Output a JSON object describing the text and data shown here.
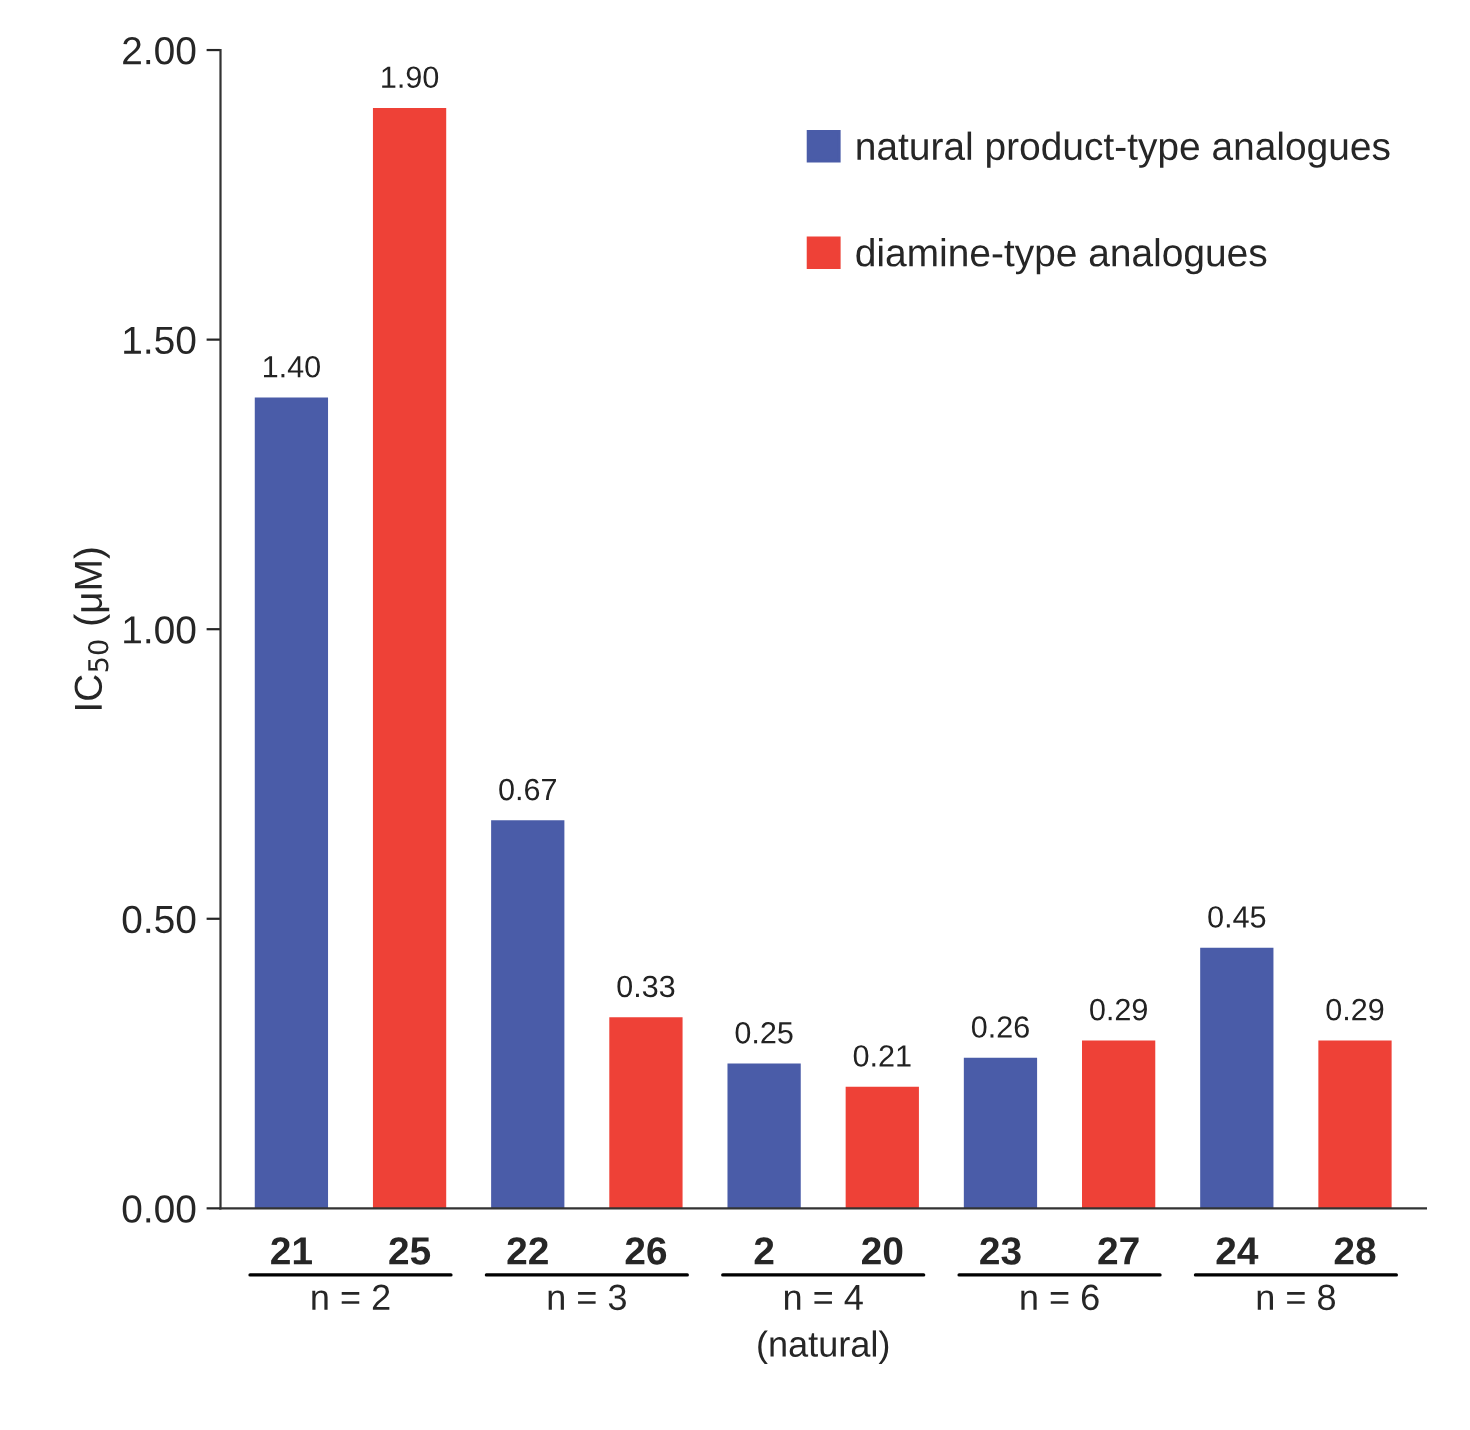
{
  "chart_data": {
    "type": "bar",
    "ylabel": "IC$_{50}$ (μM)",
    "categories": [
      "21",
      "25",
      "22",
      "26",
      "2",
      "20",
      "23",
      "27",
      "24",
      "28"
    ],
    "series": [
      {
        "name": "natural product-type analogues",
        "color": "#4a5ca8",
        "values": [
          1.4,
          null,
          0.67,
          null,
          0.25,
          null,
          0.26,
          null,
          0.45,
          null
        ]
      },
      {
        "name": "diamine-type analogues",
        "color": "#ee4137",
        "values": [
          null,
          1.9,
          null,
          0.33,
          null,
          0.21,
          null,
          0.29,
          null,
          0.29
        ]
      }
    ],
    "ylim": [
      0,
      2
    ],
    "yticks": [
      {
        "value": 0,
        "label": "0.00"
      },
      {
        "value": 0.5,
        "label": "0.50"
      },
      {
        "value": 1,
        "label": "1.00"
      },
      {
        "value": 1.5,
        "label": "1.50"
      },
      {
        "value": 2,
        "label": "2.00"
      }
    ],
    "value_labels": [
      "1.40",
      "1.90",
      "0.67",
      "0.33",
      "0.25",
      "0.21",
      "0.26",
      "0.29",
      "0.45",
      "0.29"
    ],
    "annotations": [
      "n = 2",
      "n = 3",
      "n = 4\n(natural)",
      "n = 6",
      "n = 8"
    ],
    "legend": "top right",
    "grid": false
  }
}
